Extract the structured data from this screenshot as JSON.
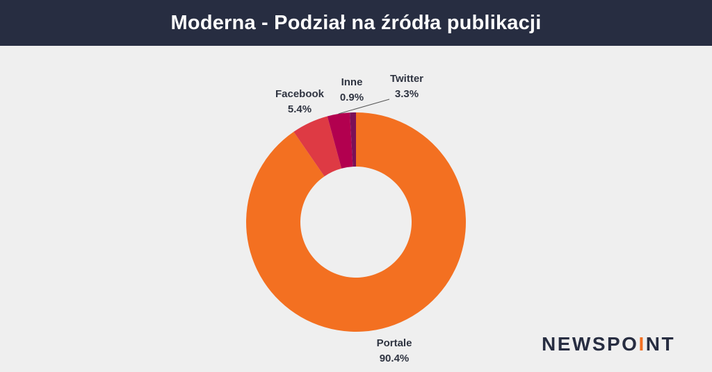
{
  "header": {
    "title": "Moderna - Podział na źródła publikacji"
  },
  "brand": {
    "logo_text": "NEWSPOINT",
    "logo_dot_char": "I",
    "logo_dot_color": "#f37021"
  },
  "chart_data": {
    "type": "pie",
    "donut": true,
    "title": "Moderna - Podział na źródła publikacji",
    "slices": [
      {
        "label": "Portale",
        "value": 90.4,
        "display": "90.4%",
        "color": "#f37021"
      },
      {
        "label": "Facebook",
        "value": 5.4,
        "display": "5.4%",
        "color": "#de3a44"
      },
      {
        "label": "Twitter",
        "value": 3.3,
        "display": "3.3%",
        "color": "#b2004f"
      },
      {
        "label": "Inne",
        "value": 0.9,
        "display": "0.9%",
        "color": "#7b1057"
      }
    ]
  }
}
